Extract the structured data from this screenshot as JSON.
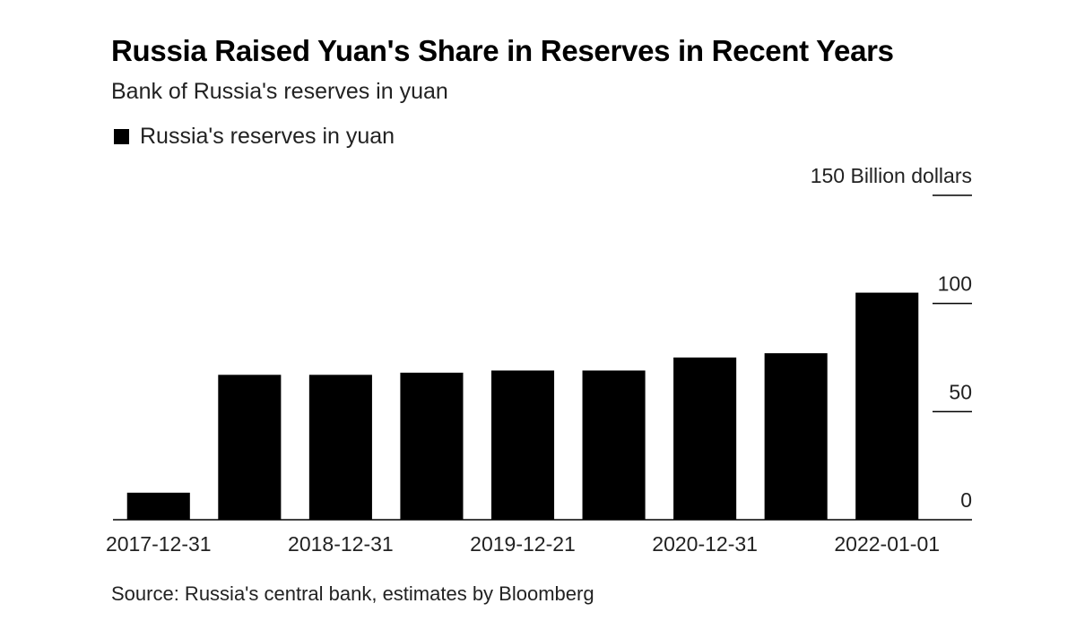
{
  "header": {
    "title": "Russia Raised Yuan's Share in Reserves in Recent Years",
    "subtitle": "Bank of Russia's reserves in yuan"
  },
  "legend": {
    "label": "Russia's reserves in yuan",
    "color": "#000000"
  },
  "source": "Source: Russia's central bank, estimates by Bloomberg",
  "chart_data": {
    "type": "bar",
    "series": [
      {
        "name": "Russia's reserves in yuan",
        "color": "#000000",
        "values": [
          12.5,
          67,
          67,
          68,
          69,
          69,
          75,
          77,
          105
        ]
      }
    ],
    "x_tick_labels": [
      "2017-12-31",
      "2018-12-31",
      "2019-12-21",
      "2020-12-31",
      "2022-01-01"
    ],
    "y_ticks": [
      0,
      50,
      100,
      150
    ],
    "y_tick_labels": [
      "0",
      "50",
      "100",
      "150 Billion dollars"
    ],
    "ylim": [
      0,
      150
    ],
    "grid": false,
    "legend_position": "top-left"
  }
}
